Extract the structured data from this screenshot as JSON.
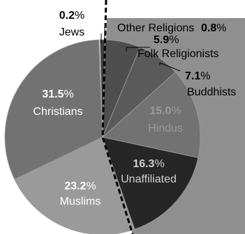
{
  "chart_data": {
    "type": "pie",
    "title": "",
    "slices": [
      {
        "label": "Other Religions",
        "value": 0.8,
        "pct_text": "0.8",
        "color": "#3c3c3c"
      },
      {
        "label": "Folk Religionists",
        "value": 5.9,
        "pct_text": "5.9",
        "color": "#4e4e4e"
      },
      {
        "label": "Buddhists",
        "value": 7.1,
        "pct_text": "7.1",
        "color": "#5a5a5a"
      },
      {
        "label": "Hindus",
        "value": 15.0,
        "pct_text": "15.0",
        "color": "#727272"
      },
      {
        "label": "Unaffiliated",
        "value": 16.3,
        "pct_text": "16.3",
        "color": "#262626"
      },
      {
        "label": "Muslims",
        "value": 23.2,
        "pct_text": "23.2",
        "color": "#9a9a9a"
      },
      {
        "label": "Christians",
        "value": 31.5,
        "pct_text": "31.5",
        "color": "#727272"
      },
      {
        "label": "Jews",
        "value": 0.2,
        "pct_text": "0.2",
        "color": "#c8c8c8"
      }
    ],
    "percent_sign": "%",
    "background_panel_color": "#8f8f8f",
    "divider": "dashed"
  }
}
